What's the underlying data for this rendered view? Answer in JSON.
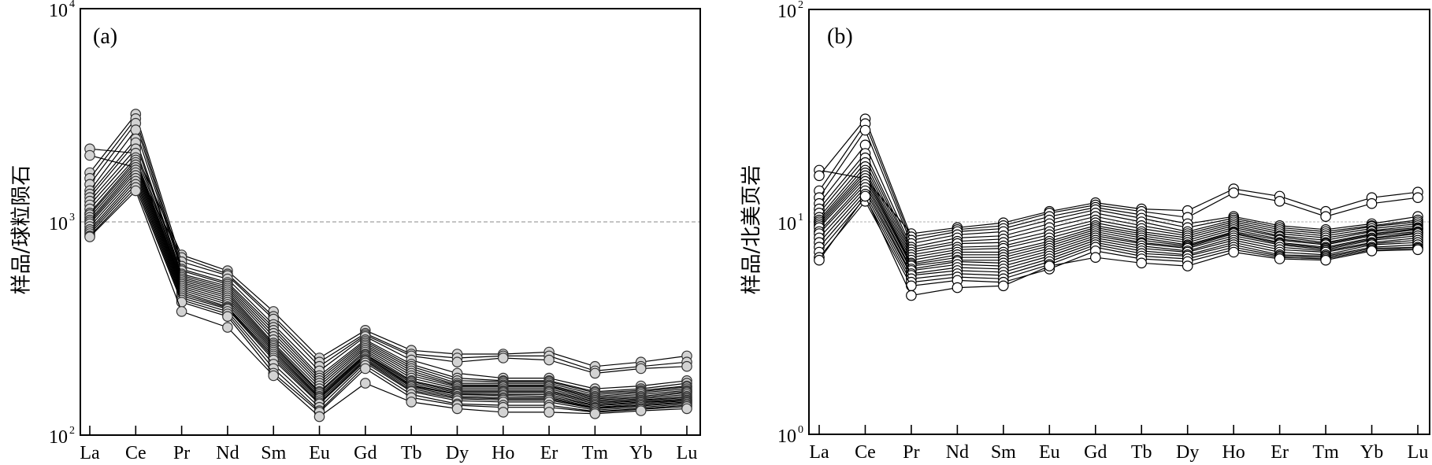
{
  "chart_data": [
    {
      "type": "line",
      "panel_label": "(a)",
      "title": "",
      "xlabel": "",
      "ylabel": "样品/球粒陨石",
      "yscale": "log",
      "ylim": [
        100,
        10000
      ],
      "yticks": [
        {
          "base": "10",
          "exp": "2"
        },
        {
          "base": "10",
          "exp": "3"
        },
        {
          "base": "10",
          "exp": "4"
        }
      ],
      "reference_line": 1000,
      "grid": false,
      "legend": "none",
      "marker": {
        "shape": "circle",
        "fill": "#d3d3d3",
        "edge": "#333333"
      },
      "categories": [
        "La",
        "Ce",
        "Pr",
        "Nd",
        "Sm",
        "Eu",
        "Gd",
        "Tb",
        "Dy",
        "Ho",
        "Er",
        "Tm",
        "Yb",
        "Lu"
      ],
      "series": [
        {
          "name": "a1",
          "values": [
            2200,
            2100,
            700,
            590,
            380,
            230,
            310,
            250,
            240,
            240,
            245,
            210,
            220,
            235
          ]
        },
        {
          "name": "a2",
          "values": [
            2050,
            1800,
            680,
            570,
            360,
            220,
            300,
            240,
            230,
            235,
            235,
            200,
            210,
            220
          ]
        },
        {
          "name": "a3",
          "values": [
            1700,
            3200,
            650,
            560,
            350,
            210,
            295,
            235,
            220,
            230,
            225,
            195,
            205,
            210
          ]
        },
        {
          "name": "a4",
          "values": [
            1600,
            3050,
            620,
            540,
            330,
            200,
            290,
            225,
            195,
            185,
            185,
            165,
            170,
            180
          ]
        },
        {
          "name": "a5",
          "values": [
            1500,
            2900,
            600,
            520,
            320,
            190,
            280,
            215,
            185,
            180,
            180,
            160,
            165,
            175
          ]
        },
        {
          "name": "a6",
          "values": [
            1400,
            2700,
            590,
            510,
            310,
            185,
            275,
            210,
            180,
            178,
            178,
            158,
            162,
            170
          ]
        },
        {
          "name": "a7",
          "values": [
            1350,
            2450,
            570,
            500,
            300,
            180,
            270,
            205,
            175,
            175,
            175,
            155,
            160,
            168
          ]
        },
        {
          "name": "a8",
          "values": [
            1300,
            2350,
            560,
            490,
            290,
            175,
            265,
            200,
            172,
            172,
            172,
            152,
            158,
            165
          ]
        },
        {
          "name": "a9",
          "values": [
            1250,
            2200,
            550,
            480,
            280,
            170,
            260,
            195,
            170,
            170,
            170,
            150,
            155,
            162
          ]
        },
        {
          "name": "a10",
          "values": [
            1200,
            2100,
            540,
            470,
            270,
            165,
            255,
            190,
            168,
            168,
            168,
            148,
            152,
            160
          ]
        },
        {
          "name": "a11",
          "values": [
            1150,
            2000,
            530,
            460,
            265,
            160,
            250,
            185,
            165,
            165,
            165,
            146,
            150,
            158
          ]
        },
        {
          "name": "a12",
          "values": [
            1100,
            1950,
            520,
            450,
            260,
            158,
            245,
            180,
            162,
            162,
            162,
            144,
            148,
            155
          ]
        },
        {
          "name": "a13",
          "values": [
            1080,
            1900,
            510,
            440,
            255,
            155,
            240,
            178,
            160,
            160,
            160,
            142,
            146,
            152
          ]
        },
        {
          "name": "a14",
          "values": [
            1050,
            1850,
            500,
            430,
            250,
            152,
            238,
            175,
            158,
            158,
            158,
            140,
            145,
            150
          ]
        },
        {
          "name": "a15",
          "values": [
            1020,
            1800,
            490,
            420,
            245,
            150,
            235,
            172,
            156,
            155,
            155,
            138,
            143,
            148
          ]
        },
        {
          "name": "a16",
          "values": [
            1000,
            1750,
            480,
            410,
            240,
            148,
            232,
            170,
            155,
            153,
            152,
            137,
            142,
            146
          ]
        },
        {
          "name": "a17",
          "values": [
            980,
            1700,
            470,
            400,
            235,
            145,
            228,
            168,
            152,
            150,
            150,
            135,
            140,
            145
          ]
        },
        {
          "name": "a18",
          "values": [
            950,
            1650,
            460,
            395,
            230,
            142,
            225,
            165,
            150,
            148,
            148,
            134,
            138,
            143
          ]
        },
        {
          "name": "a19",
          "values": [
            920,
            1600,
            450,
            390,
            225,
            140,
            222,
            162,
            148,
            146,
            146,
            133,
            137,
            142
          ]
        },
        {
          "name": "a20",
          "values": [
            900,
            1550,
            440,
            380,
            215,
            135,
            218,
            160,
            145,
            143,
            143,
            131,
            135,
            140
          ]
        },
        {
          "name": "a21",
          "values": [
            880,
            1500,
            430,
            370,
            205,
            130,
            212,
            155,
            140,
            138,
            138,
            129,
            133,
            138
          ]
        },
        {
          "name": "a22",
          "values": [
            860,
            1450,
            420,
            360,
            195,
            128,
            205,
            150,
            138,
            135,
            135,
            128,
            132,
            136
          ]
        },
        {
          "name": "a23",
          "values": [
            850,
            1400,
            380,
            320,
            190,
            122,
            175,
            143,
            133,
            128,
            128,
            126,
            130,
            133
          ]
        }
      ]
    },
    {
      "type": "line",
      "panel_label": "(b)",
      "title": "",
      "xlabel": "",
      "ylabel": "样品/北美页岩",
      "yscale": "log",
      "ylim": [
        1,
        100
      ],
      "yticks": [
        {
          "base": "10",
          "exp": "0"
        },
        {
          "base": "10",
          "exp": "1"
        },
        {
          "base": "10",
          "exp": "2"
        }
      ],
      "reference_line": 10,
      "grid": false,
      "legend": "none",
      "marker": {
        "shape": "circle",
        "fill": "#ffffff",
        "edge": "#000000"
      },
      "categories": [
        "La",
        "Ce",
        "Pr",
        "Nd",
        "Sm",
        "Eu",
        "Gd",
        "Tb",
        "Dy",
        "Ho",
        "Er",
        "Tm",
        "Yb",
        "Lu"
      ],
      "series": [
        {
          "name": "b1",
          "values": [
            17.5,
            16.0,
            8.8,
            9.4,
            9.9,
            11.2,
            12.3,
            11.5,
            11.3,
            14.3,
            13.2,
            11.2,
            13.0,
            13.8
          ]
        },
        {
          "name": "b2",
          "values": [
            16.5,
            30.5,
            8.5,
            9.2,
            9.6,
            11.0,
            12.0,
            11.2,
            10.5,
            13.7,
            12.5,
            10.6,
            12.2,
            13.0
          ]
        },
        {
          "name": "b3",
          "values": [
            14.0,
            29.0,
            8.2,
            9.0,
            9.3,
            10.6,
            11.7,
            10.8,
            9.8,
            10.6,
            9.6,
            9.2,
            9.8,
            10.6
          ]
        },
        {
          "name": "b4",
          "values": [
            13.0,
            27.0,
            7.9,
            8.7,
            9.0,
            10.2,
            11.4,
            10.4,
            9.4,
            10.4,
            9.4,
            9.0,
            9.6,
            10.2
          ]
        },
        {
          "name": "b5",
          "values": [
            12.2,
            23.0,
            7.6,
            8.4,
            8.6,
            9.8,
            11.0,
            10.0,
            9.0,
            10.2,
            9.2,
            8.8,
            9.5,
            10.0
          ]
        },
        {
          "name": "b6",
          "values": [
            11.5,
            21.0,
            7.4,
            8.1,
            8.3,
            9.4,
            10.6,
            9.6,
            8.8,
            10.0,
            9.0,
            8.6,
            9.3,
            9.8
          ]
        },
        {
          "name": "b7",
          "values": [
            11.0,
            20.0,
            7.2,
            7.9,
            8.0,
            9.0,
            10.2,
            9.3,
            8.6,
            9.8,
            8.8,
            8.4,
            9.1,
            9.6
          ]
        },
        {
          "name": "b8",
          "values": [
            10.5,
            19.0,
            7.0,
            7.6,
            7.7,
            8.7,
            9.9,
            9.0,
            8.4,
            9.6,
            8.6,
            8.2,
            9.0,
            9.4
          ]
        },
        {
          "name": "b9",
          "values": [
            10.2,
            18.2,
            6.8,
            7.4,
            7.5,
            8.4,
            9.6,
            8.8,
            8.2,
            9.4,
            8.5,
            8.0,
            8.8,
            9.3
          ]
        },
        {
          "name": "b10",
          "values": [
            10.0,
            17.5,
            6.6,
            7.2,
            7.2,
            8.1,
            9.4,
            8.6,
            8.0,
            9.2,
            8.3,
            7.9,
            8.7,
            9.2
          ]
        },
        {
          "name": "b11",
          "values": [
            9.8,
            17.0,
            6.4,
            7.0,
            7.0,
            7.9,
            9.2,
            8.4,
            7.8,
            9.0,
            8.2,
            7.8,
            8.6,
            9.0
          ]
        },
        {
          "name": "b12",
          "values": [
            9.6,
            16.5,
            6.3,
            6.8,
            6.8,
            7.7,
            9.0,
            8.2,
            7.7,
            8.9,
            8.0,
            7.6,
            8.4,
            8.9
          ]
        },
        {
          "name": "b13",
          "values": [
            9.4,
            16.0,
            6.2,
            6.6,
            6.6,
            7.5,
            8.8,
            8.0,
            7.6,
            8.8,
            7.9,
            7.5,
            8.3,
            8.8
          ]
        },
        {
          "name": "b14",
          "values": [
            9.0,
            15.5,
            6.0,
            6.5,
            6.4,
            7.3,
            8.6,
            7.9,
            7.5,
            8.6,
            7.8,
            7.4,
            8.2,
            8.6
          ]
        },
        {
          "name": "b15",
          "values": [
            8.8,
            15.0,
            5.9,
            6.3,
            6.2,
            7.1,
            8.4,
            7.7,
            7.3,
            8.4,
            7.6,
            7.3,
            8.0,
            8.4
          ]
        },
        {
          "name": "b16",
          "values": [
            8.4,
            14.5,
            5.7,
            6.1,
            6.0,
            6.9,
            8.2,
            7.5,
            7.2,
            8.2,
            7.4,
            7.2,
            7.9,
            8.2
          ]
        },
        {
          "name": "b17",
          "values": [
            8.0,
            14.0,
            5.6,
            5.9,
            5.8,
            6.7,
            8.0,
            7.3,
            7.0,
            8.0,
            7.2,
            7.0,
            7.8,
            8.0
          ]
        },
        {
          "name": "b18",
          "values": [
            7.6,
            13.5,
            5.4,
            5.7,
            5.6,
            6.5,
            7.8,
            7.1,
            6.9,
            7.8,
            7.0,
            6.9,
            7.6,
            7.8
          ]
        },
        {
          "name": "b19",
          "values": [
            7.2,
            13.0,
            5.2,
            5.5,
            5.4,
            6.3,
            7.6,
            6.9,
            6.7,
            7.6,
            6.9,
            6.8,
            7.5,
            7.6
          ]
        },
        {
          "name": "b20",
          "values": [
            6.8,
            12.5,
            5.0,
            5.3,
            5.2,
            6.0,
            7.3,
            6.7,
            6.5,
            7.4,
            6.8,
            6.7,
            7.4,
            7.5
          ]
        },
        {
          "name": "b21",
          "values": [
            6.6,
            13.2,
            4.5,
            4.9,
            5.0,
            6.2,
            6.8,
            6.4,
            6.2,
            7.2,
            6.7,
            6.6,
            7.3,
            7.4
          ]
        }
      ]
    }
  ]
}
